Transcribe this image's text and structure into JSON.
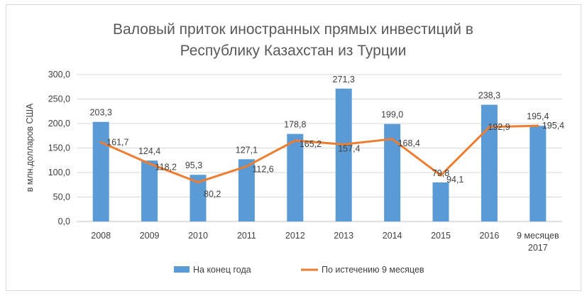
{
  "chart_data": {
    "type": "bar",
    "title_lines": [
      "Валовый приток иностранных прямых инвестиций в",
      "Республику  Казахстан из Турции"
    ],
    "ylabel": "в млн.долларов США",
    "xlabel": "",
    "ylim": [
      0,
      300
    ],
    "ytick_step": 50,
    "ytick_labels": [
      "0,0",
      "50,0",
      "100,0",
      "150,0",
      "200,0",
      "250,0",
      "300,0"
    ],
    "grid": true,
    "legend_position": "bottom",
    "categories": [
      [
        "2008"
      ],
      [
        "2009"
      ],
      [
        "2010"
      ],
      [
        "2011"
      ],
      [
        "2012"
      ],
      [
        "2013"
      ],
      [
        "2014"
      ],
      [
        "2015"
      ],
      [
        "2016"
      ],
      [
        "9 месяцев",
        "2017"
      ]
    ],
    "series": [
      {
        "name": "На конец года",
        "kind": "bar",
        "color": "#5B9BD5",
        "values": [
          203.3,
          124.4,
          95.3,
          127.1,
          178.8,
          271.3,
          199.0,
          79.8,
          238.3,
          195.4
        ],
        "labels": [
          "203,3",
          "124,4",
          "95,3",
          "127,1",
          "178,8",
          "271,3",
          "199,0",
          "79,8",
          "238,3",
          "195,4"
        ]
      },
      {
        "name": "По истечению 9 месяцев",
        "kind": "line",
        "color": "#ED7D31",
        "values": [
          161.7,
          118.2,
          80.2,
          112.6,
          165.2,
          157.4,
          168.4,
          94.1,
          192.9,
          195.4
        ],
        "labels": [
          "161,7",
          "118,2",
          "80,2",
          "112,6",
          "165,2",
          "157,4",
          "168,4",
          "94,1",
          "192,9",
          "195,4"
        ]
      }
    ]
  }
}
